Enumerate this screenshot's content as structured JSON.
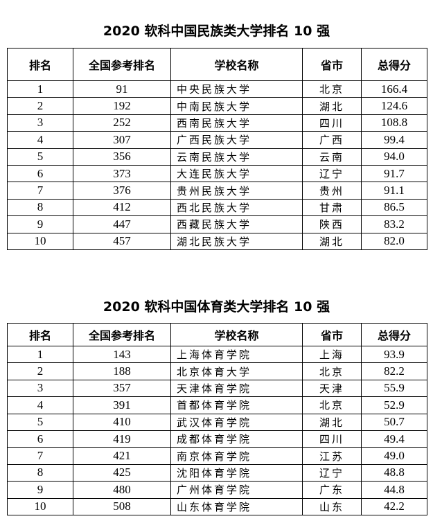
{
  "headers": [
    "排名",
    "全国参考排名",
    "学校名称",
    "省市",
    "总得分"
  ],
  "tables": [
    {
      "title": "2020 软科中国民族类大学排名 10 强",
      "rows": [
        [
          "1",
          "91",
          "中央民族大学",
          "北京",
          "166.4"
        ],
        [
          "2",
          "192",
          "中南民族大学",
          "湖北",
          "124.6"
        ],
        [
          "3",
          "252",
          "西南民族大学",
          "四川",
          "108.8"
        ],
        [
          "4",
          "307",
          "广西民族大学",
          "广西",
          "99.4"
        ],
        [
          "5",
          "356",
          "云南民族大学",
          "云南",
          "94.0"
        ],
        [
          "6",
          "373",
          "大连民族大学",
          "辽宁",
          "91.7"
        ],
        [
          "7",
          "376",
          "贵州民族大学",
          "贵州",
          "91.1"
        ],
        [
          "8",
          "412",
          "西北民族大学",
          "甘肃",
          "86.5"
        ],
        [
          "9",
          "447",
          "西藏民族大学",
          "陕西",
          "83.2"
        ],
        [
          "10",
          "457",
          "湖北民族大学",
          "湖北",
          "82.0"
        ]
      ]
    },
    {
      "title": "2020 软科中国体育类大学排名 10 强",
      "rows": [
        [
          "1",
          "143",
          "上海体育学院",
          "上海",
          "93.9"
        ],
        [
          "2",
          "188",
          "北京体育大学",
          "北京",
          "82.2"
        ],
        [
          "3",
          "357",
          "天津体育学院",
          "天津",
          "55.9"
        ],
        [
          "4",
          "391",
          "首都体育学院",
          "北京",
          "52.9"
        ],
        [
          "5",
          "410",
          "武汉体育学院",
          "湖北",
          "50.7"
        ],
        [
          "6",
          "419",
          "成都体育学院",
          "四川",
          "49.4"
        ],
        [
          "7",
          "421",
          "南京体育学院",
          "江苏",
          "49.0"
        ],
        [
          "8",
          "425",
          "沈阳体育学院",
          "辽宁",
          "48.8"
        ],
        [
          "9",
          "480",
          "广州体育学院",
          "广东",
          "44.8"
        ],
        [
          "10",
          "508",
          "山东体育学院",
          "山东",
          "42.2"
        ]
      ]
    }
  ]
}
